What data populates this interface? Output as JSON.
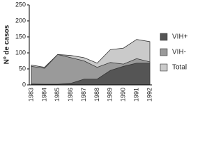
{
  "chart_data": {
    "type": "area",
    "y_label": "Nº de casos",
    "categories": [
      "1983",
      "1984",
      "1985",
      "1986",
      "1987",
      "1988",
      "1989",
      "1990",
      "1991",
      "1992"
    ],
    "series": [
      {
        "name": "VIH+",
        "color": "#555555",
        "values": [
          3,
          2,
          2,
          5,
          18,
          18,
          45,
          58,
          68,
          68
        ]
      },
      {
        "name": "VIH-",
        "color": "#9a9a9a",
        "values": [
          58,
          52,
          95,
          85,
          75,
          55,
          70,
          65,
          82,
          72
        ]
      },
      {
        "name": "Total",
        "color": "#cacaca",
        "values": [
          62,
          55,
          95,
          92,
          85,
          68,
          110,
          115,
          142,
          135
        ]
      }
    ],
    "ylim": [
      0,
      250
    ],
    "yticks": [
      0,
      50,
      100,
      150,
      200,
      250
    ],
    "legend": "right"
  }
}
